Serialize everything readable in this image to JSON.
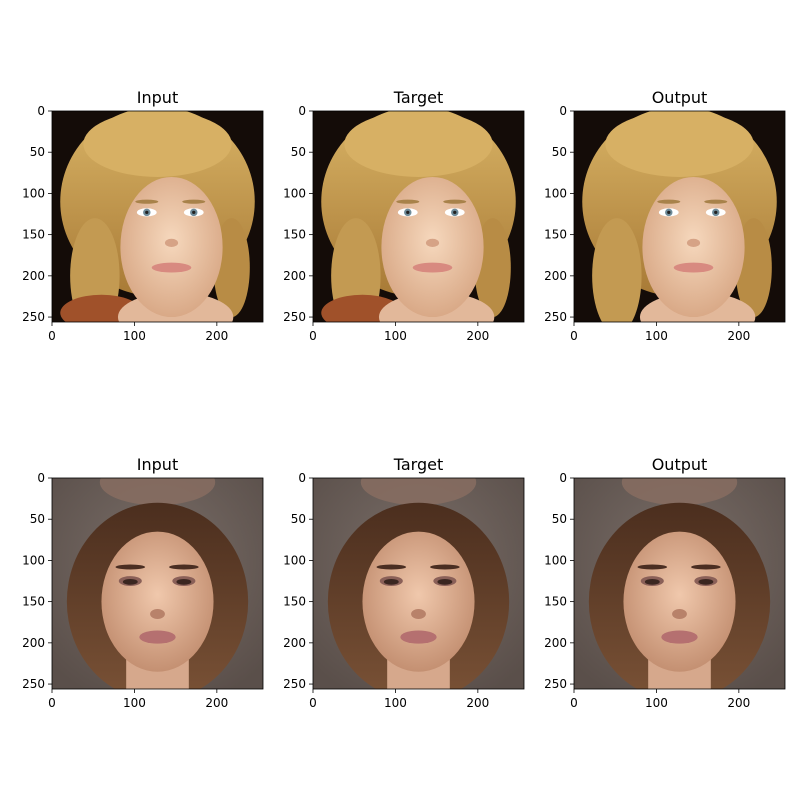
{
  "figure": {
    "panels": [
      {
        "title": "Input",
        "subject": "blonde-woman-input-photo",
        "x_ticks": [
          "0",
          "100",
          "200"
        ],
        "y_ticks": [
          "0",
          "50",
          "100",
          "150",
          "200",
          "250"
        ]
      },
      {
        "title": "Target",
        "subject": "blonde-woman-target-photo",
        "x_ticks": [
          "0",
          "100",
          "200"
        ],
        "y_ticks": [
          "0",
          "50",
          "100",
          "150",
          "200",
          "250"
        ]
      },
      {
        "title": "Output",
        "subject": "blonde-woman-generated-photo",
        "x_ticks": [
          "0",
          "100",
          "200"
        ],
        "y_ticks": [
          "0",
          "50",
          "100",
          "150",
          "200",
          "250"
        ]
      },
      {
        "title": "Input",
        "subject": "brunette-woman-input-photo",
        "x_ticks": [
          "0",
          "100",
          "200"
        ],
        "y_ticks": [
          "0",
          "50",
          "100",
          "150",
          "200",
          "250"
        ]
      },
      {
        "title": "Target",
        "subject": "brunette-woman-target-photo",
        "x_ticks": [
          "0",
          "100",
          "200"
        ],
        "y_ticks": [
          "0",
          "50",
          "100",
          "150",
          "200",
          "250"
        ]
      },
      {
        "title": "Output",
        "subject": "brunette-woman-generated-photo",
        "x_ticks": [
          "0",
          "100",
          "200"
        ],
        "y_ticks": [
          "0",
          "50",
          "100",
          "150",
          "200",
          "250"
        ]
      }
    ],
    "x_tick_values": [
      0,
      100,
      200
    ],
    "y_tick_values": [
      0,
      50,
      100,
      150,
      200,
      250
    ],
    "image_size": 256,
    "colors": {
      "row1_background": "#140c08",
      "row1_hair": "#c8a050",
      "row1_skin": "#eec8a6",
      "row2_background": "#6e625c",
      "row2_hair": "#5a3a26",
      "row2_skin": "#e0b49a",
      "lips_row1": "#d88a80",
      "lips_row2": "#b57070",
      "eyes": "#6f8c9a"
    }
  }
}
